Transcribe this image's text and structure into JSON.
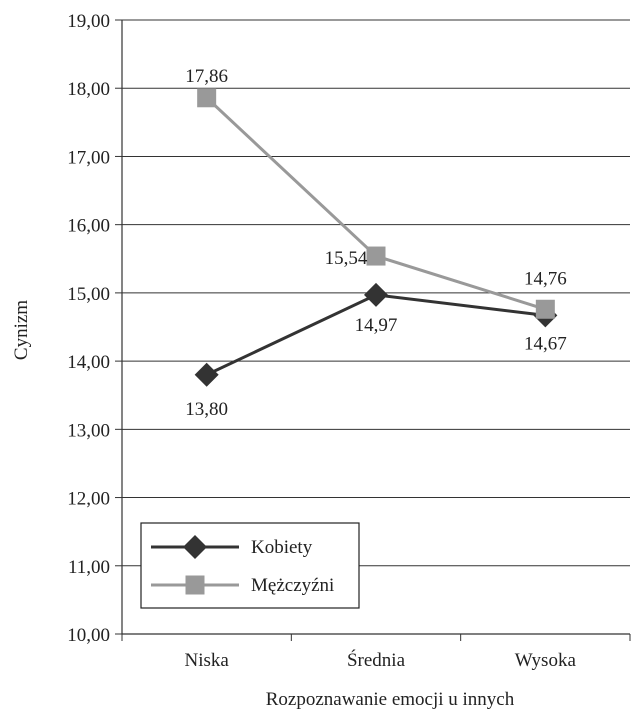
{
  "chart_data": {
    "type": "line",
    "categories": [
      "Niska",
      "Średnia",
      "Wysoka"
    ],
    "xlabel": "Rozpoznawanie emocji u innych",
    "ylabel": "Cynizm",
    "ylim": [
      10,
      19
    ],
    "yticks": [
      "10,00",
      "11,00",
      "12,00",
      "13,00",
      "14,00",
      "15,00",
      "16,00",
      "17,00",
      "18,00",
      "19,00"
    ],
    "grid": true,
    "legend": "bottom-left",
    "series": [
      {
        "name": "Kobiety",
        "values": [
          13.8,
          14.97,
          14.67
        ],
        "labels": [
          "13,80",
          "14,97",
          "14,67"
        ],
        "color": "#333333",
        "marker": "diamond"
      },
      {
        "name": "Mężczyźni",
        "values": [
          17.86,
          15.54,
          14.76
        ],
        "labels": [
          "17,86",
          "15,54",
          "14,76"
        ],
        "color": "#999999",
        "marker": "square"
      }
    ]
  }
}
